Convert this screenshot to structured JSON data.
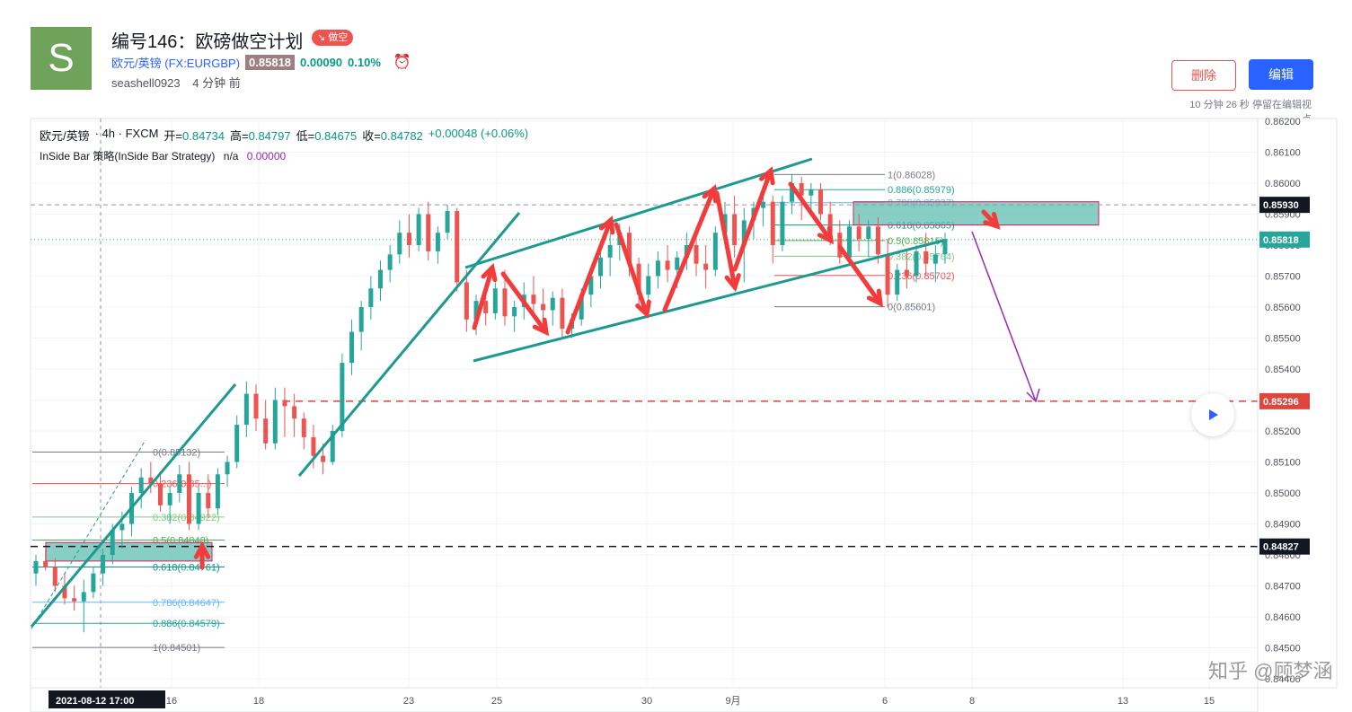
{
  "header": {
    "avatar_letter": "S",
    "title": "编号146：欧磅做空计划",
    "badge": "↘ 做空",
    "symbol_name": "欧元/英镑",
    "symbol_code": "(FX:EURGBP)",
    "price": "0.85818",
    "change": "0.00090",
    "change_pct": "0.10%",
    "author": "seashell0923",
    "posted": "4 分钟 前",
    "delete_label": "删除",
    "edit_label": "编辑",
    "edit_note": "10 分钟 26 秒 停留在编辑视",
    "edit_note_tail": "点"
  },
  "legend": {
    "line1": [
      "欧元/英镑",
      "· 4h · FXCM",
      "开=",
      "0.84734",
      "高=",
      "0.84797",
      "低=",
      "0.84675",
      "收=",
      "0.84782",
      "+0.00048 (+0.06%)"
    ],
    "strategy": "InSide Bar 策略(InSide Bar Strategy)",
    "na": "n/a",
    "strategy_value": "0.00000"
  },
  "chart_data": {
    "type": "candlestick",
    "symbol": "EURGBP",
    "interval": "4h",
    "ylim": [
      0.8434,
      0.8623
    ],
    "y_ticks": [
      "0.86200",
      "0.86100",
      "0.86000",
      "0.85900",
      "0.85800",
      "0.85700",
      "0.85600",
      "0.85500",
      "0.85400",
      "0.85300",
      "0.85200",
      "0.85100",
      "0.85000",
      "0.84900",
      "0.84800",
      "0.84700",
      "0.84600",
      "0.84500",
      "0.84400"
    ],
    "x_labels": [
      "2021-08-12  17:00",
      "16",
      "18",
      "23",
      "25",
      "30",
      "9月",
      "6",
      "8",
      "13",
      "15"
    ],
    "price_tags": [
      {
        "value": "0.85930",
        "style": "dark"
      },
      {
        "value": "0.85818",
        "style": "teal"
      },
      {
        "value": "0.85296",
        "style": "red"
      },
      {
        "value": "0.84827",
        "style": "dark"
      }
    ],
    "fib_lower": [
      "0(0.85132)",
      "0.236(0.85...)",
      "0.382(0.84922)",
      "0.5(0.84848)",
      "0.618(0.84761)",
      "0.786(0.84647)",
      "0.886(0.84579)",
      "1(0.84501)"
    ],
    "fib_upper": [
      "1(0.86028)",
      "0.886(0.85979)",
      "0.786(0.85937)",
      "0.618(0.85865)",
      "0.5(0.85815)",
      "0.382(0.85764)",
      "0.236(0.85702)",
      "0(0.85601)"
    ],
    "ohlc": [
      [
        0.8474,
        0.848,
        0.847,
        0.8478
      ],
      [
        0.8478,
        0.8482,
        0.8475,
        0.8476
      ],
      [
        0.8476,
        0.8479,
        0.8468,
        0.847
      ],
      [
        0.847,
        0.8474,
        0.8464,
        0.8466
      ],
      [
        0.8466,
        0.847,
        0.8462,
        0.8465
      ],
      [
        0.8465,
        0.8472,
        0.8455,
        0.8468
      ],
      [
        0.8468,
        0.8476,
        0.8466,
        0.8474
      ],
      [
        0.8474,
        0.8482,
        0.847,
        0.848
      ],
      [
        0.848,
        0.849,
        0.8477,
        0.8488
      ],
      [
        0.8488,
        0.8494,
        0.8482,
        0.849
      ],
      [
        0.849,
        0.8502,
        0.8486,
        0.85
      ],
      [
        0.85,
        0.8508,
        0.8495,
        0.8505
      ],
      [
        0.8505,
        0.851,
        0.85,
        0.8503
      ],
      [
        0.8503,
        0.8507,
        0.8494,
        0.8496
      ],
      [
        0.8496,
        0.8502,
        0.849,
        0.85
      ],
      [
        0.85,
        0.8509,
        0.8497,
        0.8506
      ],
      [
        0.8506,
        0.851,
        0.8488,
        0.849
      ],
      [
        0.849,
        0.8502,
        0.8488,
        0.85
      ],
      [
        0.85,
        0.8506,
        0.8492,
        0.8495
      ],
      [
        0.8495,
        0.8508,
        0.8493,
        0.8506
      ],
      [
        0.8506,
        0.8512,
        0.8502,
        0.851
      ],
      [
        0.851,
        0.8525,
        0.8508,
        0.8522
      ],
      [
        0.8522,
        0.8536,
        0.8518,
        0.8532
      ],
      [
        0.8532,
        0.8535,
        0.852,
        0.8524
      ],
      [
        0.8524,
        0.853,
        0.8514,
        0.8516
      ],
      [
        0.8516,
        0.8534,
        0.8514,
        0.853
      ],
      [
        0.853,
        0.8534,
        0.8518,
        0.8528
      ],
      [
        0.8528,
        0.8532,
        0.8518,
        0.8524
      ],
      [
        0.8524,
        0.8526,
        0.8514,
        0.8518
      ],
      [
        0.8518,
        0.8522,
        0.8508,
        0.8512
      ],
      [
        0.8512,
        0.8516,
        0.8506,
        0.851
      ],
      [
        0.851,
        0.8522,
        0.8509,
        0.852
      ],
      [
        0.852,
        0.8545,
        0.8518,
        0.8542
      ],
      [
        0.8542,
        0.8556,
        0.8538,
        0.8552
      ],
      [
        0.8552,
        0.8562,
        0.8546,
        0.856
      ],
      [
        0.856,
        0.857,
        0.8556,
        0.8566
      ],
      [
        0.8566,
        0.8575,
        0.8562,
        0.8572
      ],
      [
        0.8572,
        0.858,
        0.8568,
        0.8577
      ],
      [
        0.8577,
        0.8588,
        0.8574,
        0.8584
      ],
      [
        0.8584,
        0.859,
        0.8576,
        0.858
      ],
      [
        0.858,
        0.8592,
        0.8578,
        0.859
      ],
      [
        0.859,
        0.8594,
        0.8575,
        0.8578
      ],
      [
        0.8578,
        0.8586,
        0.8574,
        0.8584
      ],
      [
        0.8584,
        0.8593,
        0.8582,
        0.8591
      ],
      [
        0.8591,
        0.8592,
        0.8565,
        0.8568
      ],
      [
        0.8568,
        0.8572,
        0.8552,
        0.8556
      ],
      [
        0.8556,
        0.8564,
        0.8551,
        0.8562
      ],
      [
        0.8562,
        0.8566,
        0.8554,
        0.8558
      ],
      [
        0.8558,
        0.8568,
        0.8556,
        0.8566
      ],
      [
        0.8566,
        0.8572,
        0.8554,
        0.8557
      ],
      [
        0.8557,
        0.8562,
        0.8552,
        0.856
      ],
      [
        0.856,
        0.8568,
        0.8556,
        0.8564
      ],
      [
        0.8564,
        0.857,
        0.8558,
        0.8561
      ],
      [
        0.8561,
        0.8566,
        0.8555,
        0.8559
      ],
      [
        0.8559,
        0.8565,
        0.8554,
        0.8563
      ],
      [
        0.8563,
        0.8566,
        0.855,
        0.8553
      ],
      [
        0.8553,
        0.8558,
        0.855,
        0.8556
      ],
      [
        0.8556,
        0.8566,
        0.8554,
        0.8564
      ],
      [
        0.8564,
        0.8572,
        0.856,
        0.857
      ],
      [
        0.857,
        0.8578,
        0.8566,
        0.8576
      ],
      [
        0.8576,
        0.8584,
        0.857,
        0.858
      ],
      [
        0.858,
        0.8587,
        0.8575,
        0.8584
      ],
      [
        0.8584,
        0.8586,
        0.857,
        0.8574
      ],
      [
        0.8574,
        0.8576,
        0.856,
        0.8564
      ],
      [
        0.8564,
        0.8574,
        0.8562,
        0.857
      ],
      [
        0.857,
        0.8578,
        0.8566,
        0.8575
      ],
      [
        0.8575,
        0.858,
        0.8568,
        0.8572
      ],
      [
        0.8572,
        0.8578,
        0.8566,
        0.8576
      ],
      [
        0.8576,
        0.8584,
        0.8572,
        0.858
      ],
      [
        0.858,
        0.8586,
        0.857,
        0.8574
      ],
      [
        0.8574,
        0.858,
        0.8566,
        0.8572
      ],
      [
        0.8572,
        0.8586,
        0.857,
        0.8584
      ],
      [
        0.8584,
        0.8594,
        0.858,
        0.859
      ],
      [
        0.859,
        0.8596,
        0.8576,
        0.858
      ],
      [
        0.858,
        0.8592,
        0.8568,
        0.8588
      ],
      [
        0.8588,
        0.8594,
        0.8582,
        0.8592
      ],
      [
        0.8592,
        0.8598,
        0.8586,
        0.8594
      ],
      [
        0.8594,
        0.8596,
        0.8574,
        0.858
      ],
      [
        0.858,
        0.8596,
        0.8578,
        0.8594
      ],
      [
        0.8594,
        0.8603,
        0.859,
        0.86
      ],
      [
        0.86,
        0.8602,
        0.8588,
        0.8596
      ],
      [
        0.8596,
        0.86,
        0.859,
        0.8598
      ],
      [
        0.8598,
        0.86,
        0.8588,
        0.859
      ],
      [
        0.859,
        0.8594,
        0.858,
        0.8584
      ],
      [
        0.8584,
        0.8588,
        0.8574,
        0.8576
      ],
      [
        0.8576,
        0.8588,
        0.8574,
        0.8586
      ],
      [
        0.8586,
        0.859,
        0.8578,
        0.8582
      ],
      [
        0.8582,
        0.8588,
        0.8576,
        0.8586
      ],
      [
        0.8586,
        0.8589,
        0.8574,
        0.8577
      ],
      [
        0.8577,
        0.8582,
        0.856,
        0.8564
      ],
      [
        0.8564,
        0.8574,
        0.8562,
        0.8572
      ],
      [
        0.8572,
        0.8578,
        0.8566,
        0.857
      ],
      [
        0.857,
        0.858,
        0.8568,
        0.8578
      ],
      [
        0.8578,
        0.8584,
        0.857,
        0.8574
      ],
      [
        0.8574,
        0.858,
        0.8568,
        0.8577
      ],
      [
        0.8577,
        0.8584,
        0.8574,
        0.8582
      ]
    ]
  },
  "watermark": "知乎 @顾梦涵",
  "colors": {
    "up": "#26a69a",
    "down": "#ef5350",
    "teal_line": "#1b9a92",
    "arrow": "#f23c3c",
    "purple": "#9c27b0",
    "zone": "#5fbfb2"
  }
}
